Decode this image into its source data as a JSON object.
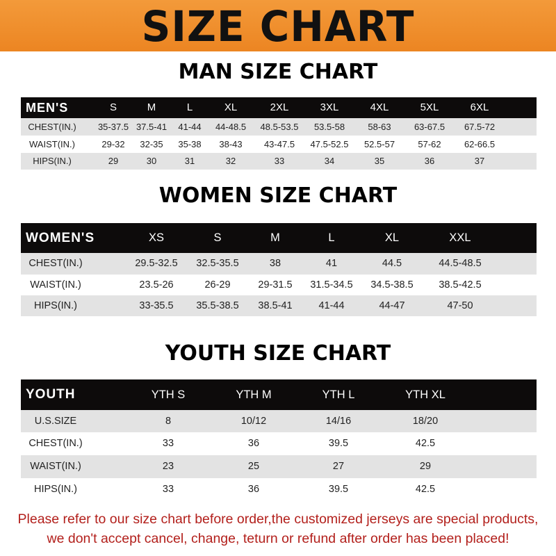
{
  "banner": {
    "title": "SIZE CHART",
    "color": "#ef8c2a"
  },
  "men": {
    "title": "MAN SIZE CHART",
    "header": [
      "MEN'S",
      "S",
      "M",
      "L",
      "XL",
      "2XL",
      "3XL",
      "4XL",
      "5XL",
      "6XL"
    ],
    "rows": [
      [
        "CHEST(IN.)",
        "35-37.5",
        "37.5-41",
        "41-44",
        "44-48.5",
        "48.5-53.5",
        "53.5-58",
        "58-63",
        "63-67.5",
        "67.5-72"
      ],
      [
        "WAIST(IN.)",
        "29-32",
        "32-35",
        "35-38",
        "38-43",
        "43-47.5",
        "47.5-52.5",
        "52.5-57",
        "57-62",
        "62-66.5"
      ],
      [
        "HIPS(IN.)",
        "29",
        "30",
        "31",
        "32",
        "33",
        "34",
        "35",
        "36",
        "37"
      ]
    ]
  },
  "women": {
    "title": "WOMEN SIZE CHART",
    "header": [
      "WOMEN'S",
      "XS",
      "S",
      "M",
      "L",
      "XL",
      "XXL"
    ],
    "rows": [
      [
        "CHEST(IN.)",
        "29.5-32.5",
        "32.5-35.5",
        "38",
        "41",
        "44.5",
        "44.5-48.5"
      ],
      [
        "WAIST(IN.)",
        "23.5-26",
        "26-29",
        "29-31.5",
        "31.5-34.5",
        "34.5-38.5",
        "38.5-42.5"
      ],
      [
        "HIPS(IN.)",
        "33-35.5",
        "35.5-38.5",
        "38.5-41",
        "41-44",
        "44-47",
        "47-50"
      ]
    ]
  },
  "youth": {
    "title": "YOUTH SIZE CHART",
    "header": [
      "YOUTH",
      "YTH S",
      "YTH M",
      "YTH L",
      "YTH XL"
    ],
    "rows": [
      [
        "U.S.SIZE",
        "8",
        "10/12",
        "14/16",
        "18/20"
      ],
      [
        "CHEST(IN.)",
        "33",
        "36",
        "39.5",
        "42.5"
      ],
      [
        "WAIST(IN.)",
        "23",
        "25",
        "27",
        "29"
      ],
      [
        "HIPS(IN.)",
        "33",
        "36",
        "39.5",
        "42.5"
      ]
    ]
  },
  "note": {
    "line1": "Please refer to our size chart before order,the customized jerseys are special products,",
    "line2": "we don't accept cancel, change, teturn or refund after order has been placed!",
    "color": "#b3201c"
  }
}
